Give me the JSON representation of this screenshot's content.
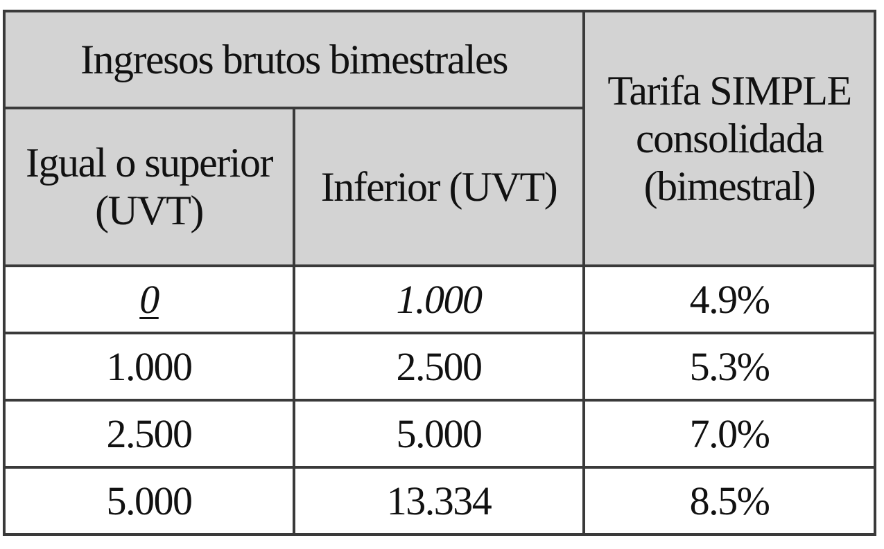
{
  "table": {
    "header": {
      "group_label": "Ingresos brutos bimestrales",
      "col_lower": "Igual o superior (UVT)",
      "col_upper": "Inferior (UVT)",
      "col_rate": "Tarifa SIMPLE consolidada (bimestral)"
    },
    "rows": [
      {
        "lower": "0",
        "upper": "1.000",
        "rate": "4.9%"
      },
      {
        "lower": "1.000",
        "upper": "2.500",
        "rate": "5.3%"
      },
      {
        "lower": "2.500",
        "upper": "5.000",
        "rate": "7.0%"
      },
      {
        "lower": "5.000",
        "upper": "13.334",
        "rate": "8.5%"
      }
    ]
  },
  "colors": {
    "header_bg": "#d3d3d3",
    "border": "#3a3a3a",
    "cell_bg": "#ffffff"
  }
}
